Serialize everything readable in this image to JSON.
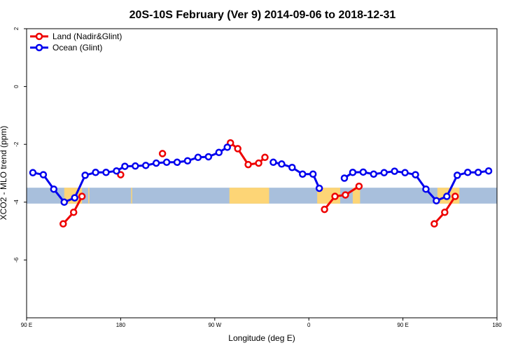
{
  "chart_data": {
    "type": "line",
    "title": "20S-10S February (Ver 9)   2014-09-06 to 2018-12-31",
    "xlabel": "Longitude (deg E)",
    "ylabel": "XCO2 - MLO trend (ppm)",
    "xlim": [
      90,
      540
    ],
    "ylim": [
      -8,
      2
    ],
    "x_ticks": [
      {
        "value": 90,
        "label": "90 E"
      },
      {
        "value": 180,
        "label": "180"
      },
      {
        "value": 270,
        "label": "90 W"
      },
      {
        "value": 360,
        "label": "0"
      },
      {
        "value": 450,
        "label": "90 E"
      },
      {
        "value": 540,
        "label": "180"
      }
    ],
    "y_ticks": [
      {
        "value": 2,
        "label": "2"
      },
      {
        "value": 0,
        "label": "0"
      },
      {
        "value": -2,
        "label": "-2"
      },
      {
        "value": -4,
        "label": "-4"
      },
      {
        "value": -6,
        "label": "-6"
      }
    ],
    "legend_position": "top-left",
    "series": [
      {
        "name": "Land (Nadir&Glint)",
        "color": "#ee0000",
        "points": [
          [
            125,
            -4.75
          ],
          [
            135,
            -4.35
          ],
          [
            143,
            -3.8
          ],
          null,
          [
            180,
            -3.05
          ],
          null,
          [
            220,
            -2.32
          ],
          null,
          [
            285,
            -1.95
          ],
          [
            292,
            -2.15
          ],
          [
            302,
            -2.7
          ],
          [
            312,
            -2.65
          ],
          [
            318,
            -2.45
          ],
          null,
          [
            375,
            -4.25
          ],
          [
            385,
            -3.8
          ],
          [
            395,
            -3.75
          ],
          [
            408,
            -3.45
          ],
          null,
          [
            480,
            -4.75
          ],
          [
            490,
            -4.35
          ],
          [
            500,
            -3.8
          ]
        ]
      },
      {
        "name": "Ocean (Glint)",
        "color": "#0000ee",
        "points": [
          [
            96,
            -2.98
          ],
          [
            106,
            -3.05
          ],
          [
            116,
            -3.55
          ],
          [
            126,
            -4.0
          ],
          [
            136,
            -3.85
          ],
          [
            146,
            -3.07
          ],
          [
            156,
            -2.97
          ],
          [
            166,
            -2.97
          ],
          [
            176,
            -2.92
          ],
          [
            184,
            -2.76
          ],
          [
            194,
            -2.75
          ],
          [
            204,
            -2.73
          ],
          [
            214,
            -2.65
          ],
          [
            224,
            -2.62
          ],
          [
            234,
            -2.62
          ],
          [
            244,
            -2.57
          ],
          [
            254,
            -2.45
          ],
          [
            264,
            -2.43
          ],
          [
            274,
            -2.28
          ],
          [
            282,
            -2.1
          ],
          null,
          [
            326,
            -2.62
          ],
          [
            334,
            -2.68
          ],
          [
            344,
            -2.8
          ],
          [
            354,
            -3.03
          ],
          [
            364,
            -3.03
          ],
          [
            370,
            -3.52
          ],
          null,
          [
            394,
            -3.17
          ],
          [
            402,
            -2.97
          ],
          [
            412,
            -2.96
          ],
          [
            422,
            -3.03
          ],
          [
            432,
            -2.98
          ],
          [
            442,
            -2.93
          ],
          [
            452,
            -2.98
          ],
          [
            462,
            -3.05
          ],
          [
            472,
            -3.55
          ],
          [
            482,
            -3.95
          ],
          [
            492,
            -3.8
          ],
          [
            502,
            -3.07
          ],
          [
            512,
            -2.97
          ],
          [
            522,
            -2.97
          ],
          [
            532,
            -2.92
          ]
        ]
      }
    ],
    "land_mask_band": {
      "y_range": [
        -4.05,
        -3.5
      ],
      "ocean_color": "#a8bfdc",
      "land_color": "#fdd576",
      "land_segments": [
        [
          126,
          143,
          "australia"
        ],
        [
          149,
          150,
          "island"
        ],
        [
          190,
          191,
          "island"
        ],
        [
          284,
          322,
          "south-america"
        ],
        [
          368,
          390,
          "africa"
        ],
        [
          402,
          409,
          "madagascar"
        ],
        [
          483,
          504,
          "australia"
        ]
      ]
    }
  }
}
